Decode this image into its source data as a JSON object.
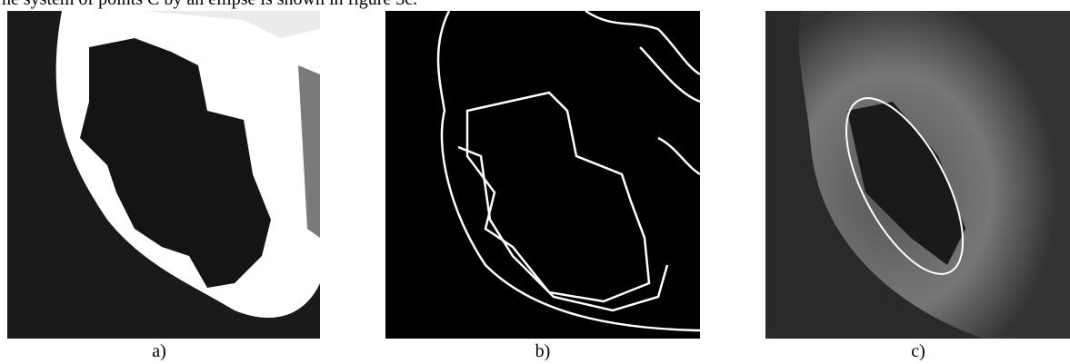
{
  "text": {
    "line": "he system of points C by an ellipse is shown in figure 3c."
  },
  "figure": {
    "panels": [
      {
        "label": "a)"
      },
      {
        "label": "b)"
      },
      {
        "label": "c)"
      }
    ]
  }
}
